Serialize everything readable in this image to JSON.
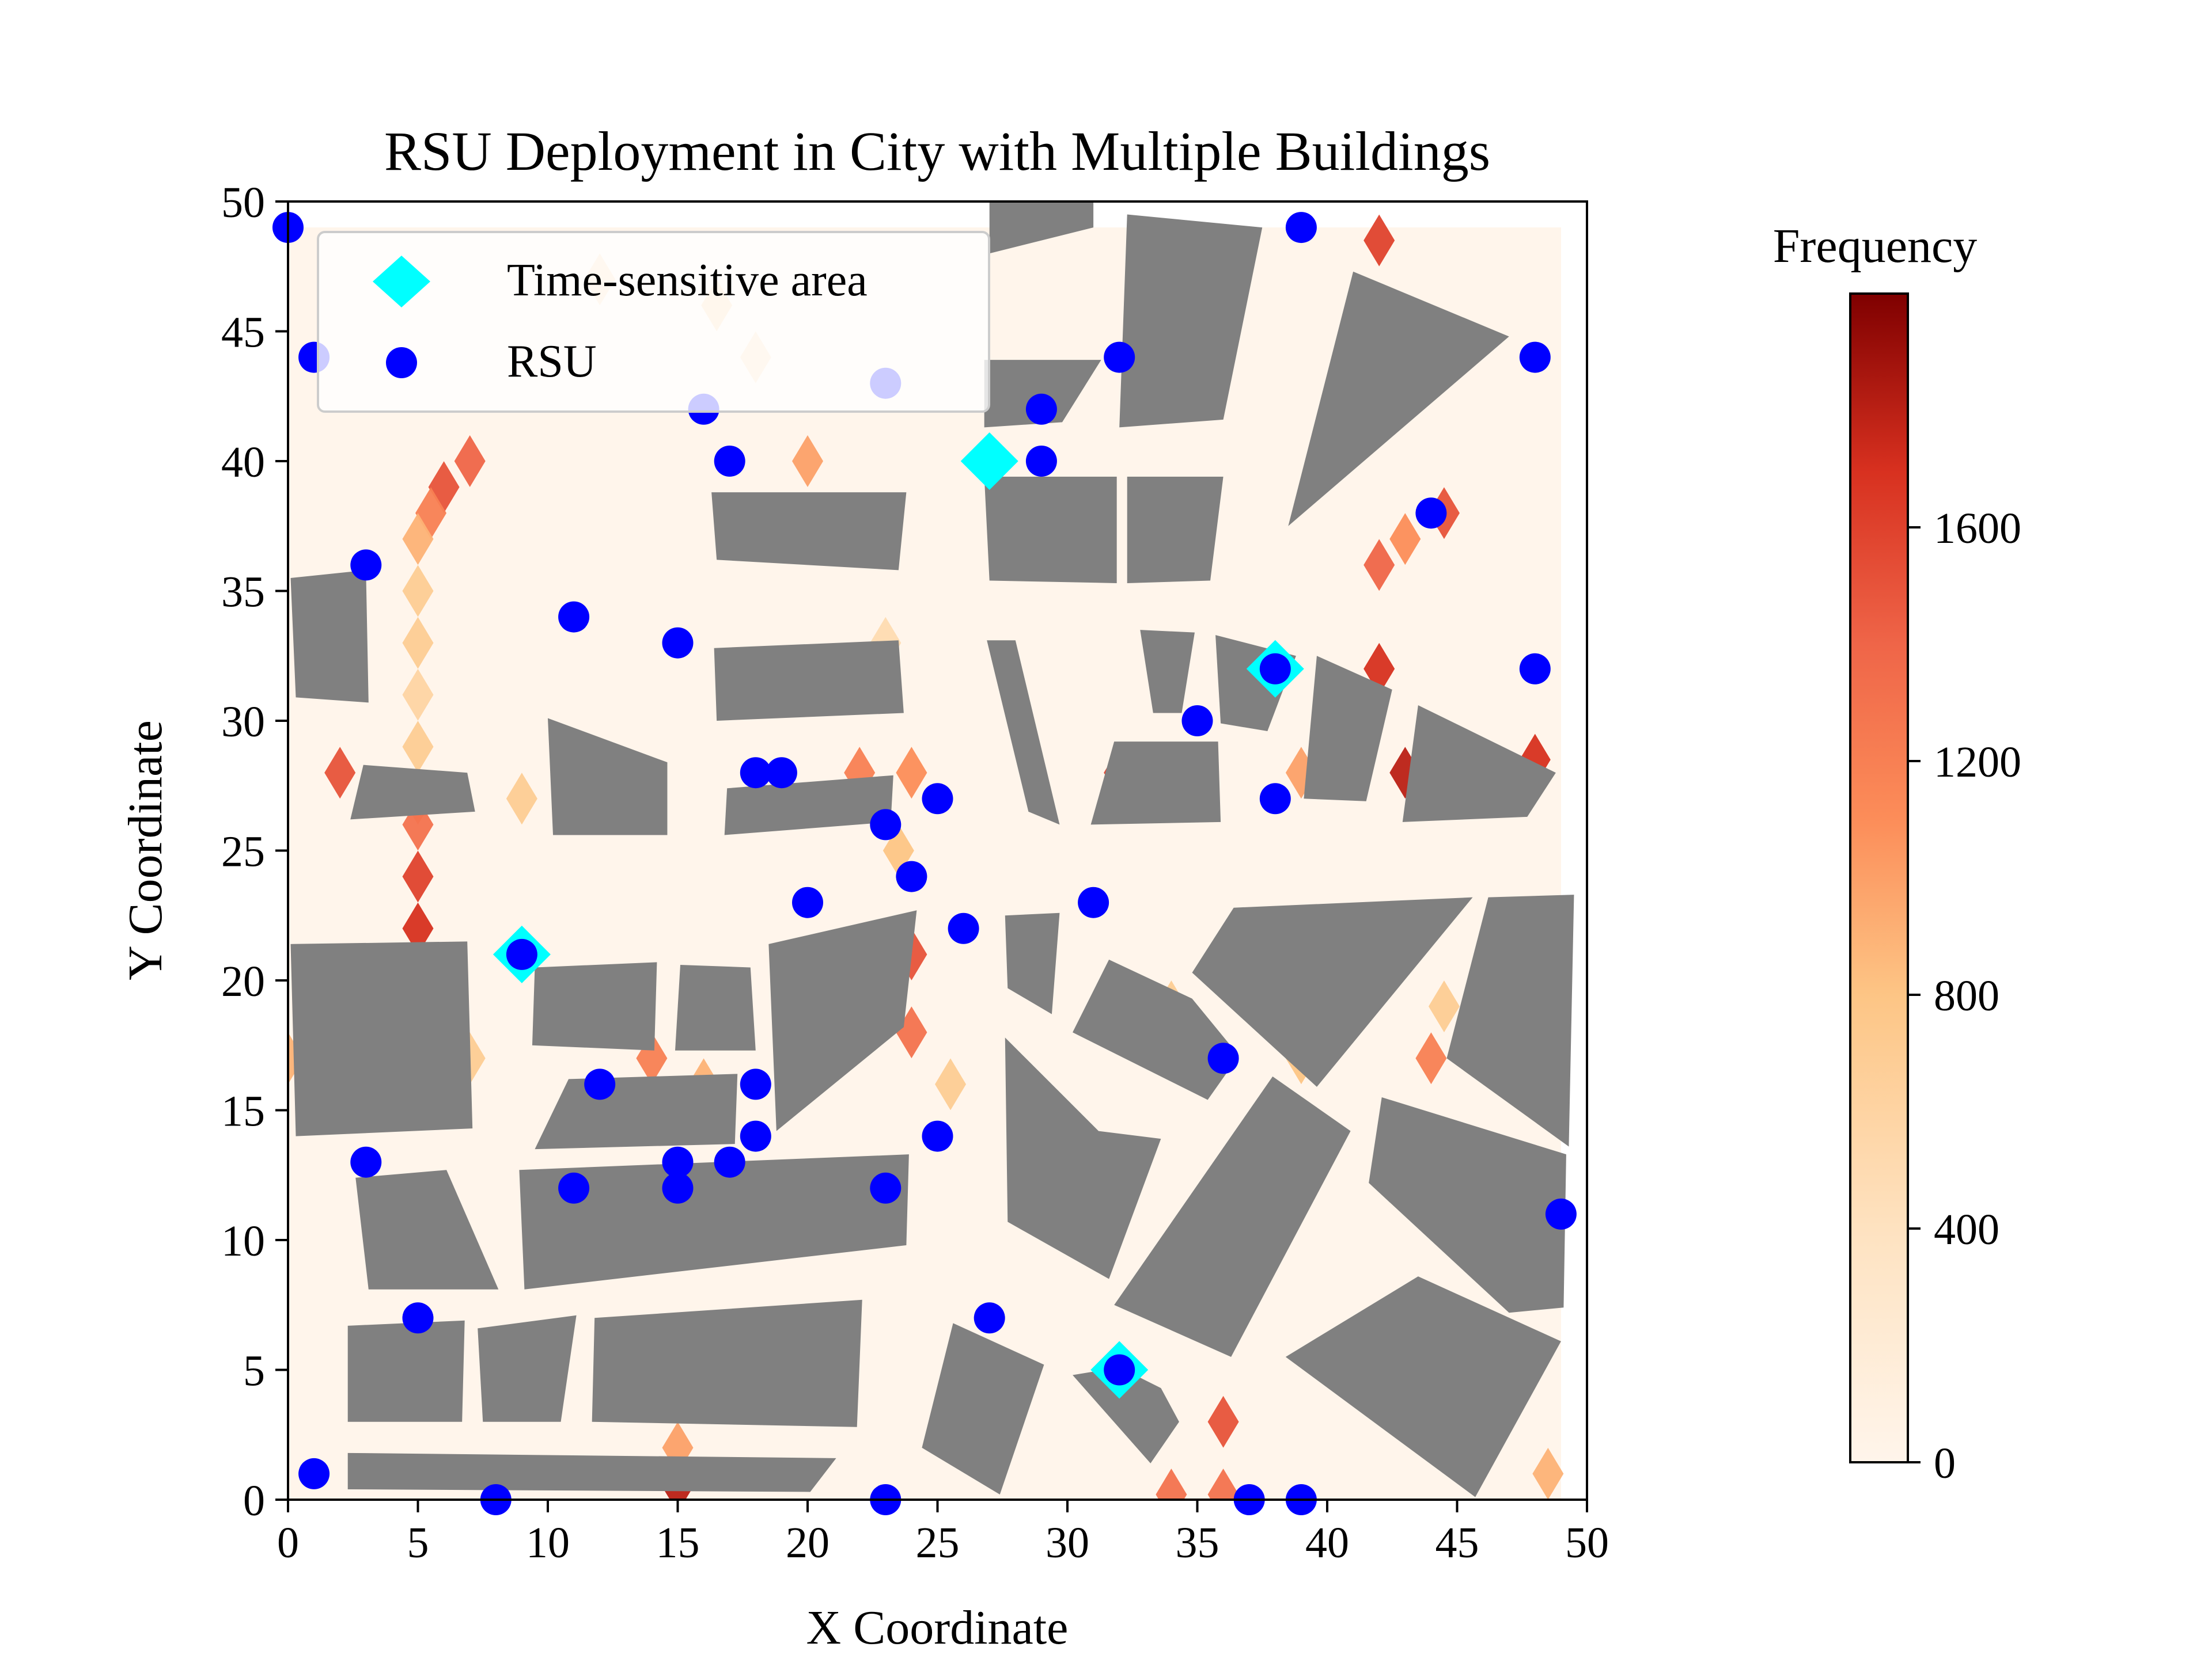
{
  "chart_data": {
    "type": "scatter",
    "title": "RSU Deployment in City with Multiple Buildings",
    "xlabel": "X Coordinate",
    "ylabel": "Y Coordinate",
    "xlim": [
      0,
      50
    ],
    "ylim": [
      0,
      50
    ],
    "xticks": [
      "0",
      "5",
      "10",
      "15",
      "20",
      "25",
      "30",
      "35",
      "40",
      "45",
      "50"
    ],
    "yticks": [
      "0",
      "5",
      "10",
      "15",
      "20",
      "25",
      "30",
      "35",
      "40",
      "45",
      "50"
    ],
    "legend": {
      "position": "top-left",
      "entries": [
        "Time-sensitive area",
        "RSU"
      ]
    },
    "colors": {
      "building": "#808080",
      "time_sensitive": "#00ffff",
      "rsu": "#0000ff",
      "heat_low": "#fff5eb",
      "heat_high": "#7f0000"
    },
    "colorbar": {
      "title": "Frequency",
      "range": [
        0,
        2000
      ],
      "ticks": [
        "0",
        "400",
        "800",
        "1200",
        "1600"
      ],
      "colormap": "OrRd"
    },
    "series": [
      {
        "name": "Time-sensitive area",
        "marker": "diamond",
        "points": [
          [
            27,
            40
          ],
          [
            38,
            32
          ],
          [
            9,
            21
          ],
          [
            32,
            5
          ]
        ]
      },
      {
        "name": "RSU",
        "marker": "circle",
        "points": [
          [
            0,
            49
          ],
          [
            39,
            49
          ],
          [
            1,
            44
          ],
          [
            32,
            44
          ],
          [
            48,
            44
          ],
          [
            23,
            43
          ],
          [
            16,
            42
          ],
          [
            29,
            42
          ],
          [
            17,
            40
          ],
          [
            29,
            40
          ],
          [
            44,
            38
          ],
          [
            3,
            36
          ],
          [
            11,
            34
          ],
          [
            15,
            33
          ],
          [
            38,
            32
          ],
          [
            48,
            32
          ],
          [
            35,
            30
          ],
          [
            18,
            28
          ],
          [
            19,
            28
          ],
          [
            25,
            27
          ],
          [
            38,
            27
          ],
          [
            23,
            26
          ],
          [
            24,
            24
          ],
          [
            20,
            23
          ],
          [
            31,
            23
          ],
          [
            26,
            22
          ],
          [
            9,
            21
          ],
          [
            36,
            17
          ],
          [
            12,
            16
          ],
          [
            18,
            16
          ],
          [
            18,
            14
          ],
          [
            25,
            14
          ],
          [
            3,
            13
          ],
          [
            15,
            13
          ],
          [
            17,
            13
          ],
          [
            11,
            12
          ],
          [
            15,
            12
          ],
          [
            23,
            12
          ],
          [
            49,
            11
          ],
          [
            5,
            7
          ],
          [
            27,
            7
          ],
          [
            32,
            5
          ],
          [
            1,
            1
          ],
          [
            8,
            0
          ],
          [
            23,
            0
          ],
          [
            37,
            0
          ],
          [
            39,
            0
          ]
        ]
      }
    ],
    "heatmap_hotspots": [
      [
        7,
        40,
        1400
      ],
      [
        6,
        39,
        1500
      ],
      [
        5.5,
        38,
        1200
      ],
      [
        5,
        37,
        900
      ],
      [
        5,
        35,
        700
      ],
      [
        5,
        33,
        700
      ],
      [
        5,
        31,
        600
      ],
      [
        5,
        29,
        700
      ],
      [
        5,
        27,
        1100
      ],
      [
        5,
        26,
        1300
      ],
      [
        5,
        24,
        1600
      ],
      [
        5,
        22,
        1700
      ],
      [
        2,
        28,
        1500
      ],
      [
        9,
        27,
        700
      ],
      [
        0,
        17,
        900
      ],
      [
        7,
        17,
        700
      ],
      [
        14,
        17,
        1200
      ],
      [
        16,
        16,
        900
      ],
      [
        15,
        2,
        1000
      ],
      [
        15,
        0.5,
        1800
      ],
      [
        20,
        40,
        1000
      ],
      [
        22,
        28,
        1200
      ],
      [
        24,
        28,
        1100
      ],
      [
        23,
        33,
        500
      ],
      [
        23.5,
        25,
        800
      ],
      [
        24,
        21,
        1500
      ],
      [
        24,
        18,
        1300
      ],
      [
        25.5,
        16,
        700
      ],
      [
        42,
        48.5,
        1600
      ],
      [
        43,
        37,
        1100
      ],
      [
        42,
        36,
        1400
      ],
      [
        44.5,
        38,
        1500
      ],
      [
        42,
        32,
        1700
      ],
      [
        43,
        28,
        1800
      ],
      [
        48,
        28.5,
        1700
      ],
      [
        32,
        28,
        1600
      ],
      [
        39,
        28,
        1000
      ],
      [
        34,
        19,
        700
      ],
      [
        39,
        17,
        800
      ],
      [
        44,
        17,
        1200
      ],
      [
        36,
        3,
        1500
      ],
      [
        34,
        0.2,
        1300
      ],
      [
        36,
        0.2,
        1300
      ],
      [
        48.5,
        1,
        900
      ],
      [
        44.5,
        19,
        700
      ],
      [
        12,
        47,
        500
      ],
      [
        16.5,
        46,
        600
      ],
      [
        18,
        44,
        500
      ]
    ],
    "buildings": [
      [
        [
          27,
          48
        ],
        [
          31,
          49
        ],
        [
          31,
          50
        ],
        [
          27,
          50
        ]
      ],
      [
        [
          32.3,
          49.5
        ],
        [
          37.5,
          49
        ],
        [
          36,
          41.6
        ],
        [
          32,
          41.3
        ]
      ],
      [
        [
          41,
          47.3
        ],
        [
          47,
          44.8
        ],
        [
          38.5,
          37.5
        ]
      ],
      [
        [
          26.8,
          43.9
        ],
        [
          31.3,
          43.9
        ],
        [
          29.8,
          41.5
        ],
        [
          26.8,
          41.3
        ]
      ],
      [
        [
          16.3,
          38.8
        ],
        [
          23.8,
          38.8
        ],
        [
          23.5,
          35.8
        ],
        [
          16.5,
          36.2
        ]
      ],
      [
        [
          26.8,
          39.4
        ],
        [
          31.9,
          39.4
        ],
        [
          31.9,
          35.3
        ],
        [
          27,
          35.4
        ]
      ],
      [
        [
          32.3,
          39.4
        ],
        [
          36,
          39.4
        ],
        [
          35.5,
          35.4
        ],
        [
          32.3,
          35.3
        ]
      ],
      [
        [
          0.1,
          35.5
        ],
        [
          3,
          35.8
        ],
        [
          3.1,
          30.7
        ],
        [
          0.3,
          30.9
        ]
      ],
      [
        [
          16.4,
          32.8
        ],
        [
          23.5,
          33.1
        ],
        [
          23.7,
          30.3
        ],
        [
          16.5,
          30
        ]
      ],
      [
        [
          26.9,
          33.1
        ],
        [
          28,
          33.1
        ],
        [
          29.7,
          26
        ],
        [
          28.5,
          26.5
        ]
      ],
      [
        [
          32.8,
          33.5
        ],
        [
          34.9,
          33.4
        ],
        [
          34.4,
          30.3
        ],
        [
          33.3,
          30.3
        ]
      ],
      [
        [
          35.7,
          33.3
        ],
        [
          38.8,
          32.5
        ],
        [
          37.7,
          29.6
        ],
        [
          35.9,
          29.9
        ]
      ],
      [
        [
          39.6,
          32.5
        ],
        [
          42.5,
          31.2
        ],
        [
          41.5,
          26.9
        ],
        [
          39.1,
          27
        ]
      ],
      [
        [
          43.5,
          30.6
        ],
        [
          48.8,
          28
        ],
        [
          47.7,
          26.3
        ],
        [
          42.9,
          26.1
        ]
      ],
      [
        [
          10,
          30.1
        ],
        [
          14.6,
          28.4
        ],
        [
          14.6,
          25.6
        ],
        [
          10.2,
          25.6
        ]
      ],
      [
        [
          16.9,
          27.4
        ],
        [
          23.3,
          27.9
        ],
        [
          23.2,
          26.1
        ],
        [
          16.8,
          25.6
        ]
      ],
      [
        [
          31.8,
          29.2
        ],
        [
          35.8,
          29.2
        ],
        [
          35.9,
          26.1
        ],
        [
          30.9,
          26
        ]
      ],
      [
        [
          2.9,
          28.3
        ],
        [
          6.9,
          28
        ],
        [
          7.2,
          26.5
        ],
        [
          2.4,
          26.2
        ]
      ],
      [
        [
          0.1,
          21.4
        ],
        [
          6.9,
          21.5
        ],
        [
          7.1,
          14.3
        ],
        [
          0.3,
          14
        ]
      ],
      [
        [
          9.5,
          20.5
        ],
        [
          14.2,
          20.7
        ],
        [
          14.1,
          17.3
        ],
        [
          9.4,
          17.5
        ]
      ],
      [
        [
          15.1,
          20.6
        ],
        [
          17.8,
          20.5
        ],
        [
          18,
          17.3
        ],
        [
          14.9,
          17.3
        ]
      ],
      [
        [
          18.5,
          21.4
        ],
        [
          24.2,
          22.7
        ],
        [
          23.7,
          18.2
        ],
        [
          18.8,
          14.2
        ]
      ],
      [
        [
          27.6,
          22.5
        ],
        [
          29.7,
          22.6
        ],
        [
          29.4,
          18.7
        ],
        [
          27.7,
          19.7
        ]
      ],
      [
        [
          31.6,
          20.8
        ],
        [
          34.8,
          19.3
        ],
        [
          36.6,
          17.1
        ],
        [
          35.4,
          15.4
        ],
        [
          30.2,
          18
        ]
      ],
      [
        [
          36.4,
          22.8
        ],
        [
          45.6,
          23.2
        ],
        [
          39.6,
          15.9
        ],
        [
          34.8,
          20.3
        ]
      ],
      [
        [
          46.2,
          23.2
        ],
        [
          49.5,
          23.3
        ],
        [
          49.3,
          13.6
        ],
        [
          44.6,
          17
        ]
      ],
      [
        [
          10.8,
          16.2
        ],
        [
          17.3,
          16.4
        ],
        [
          17.2,
          13.7
        ],
        [
          9.5,
          13.5
        ]
      ],
      [
        [
          27.6,
          17.8
        ],
        [
          31.2,
          14.2
        ],
        [
          33.6,
          13.9
        ],
        [
          31.6,
          8.5
        ],
        [
          27.7,
          10.7
        ]
      ],
      [
        [
          37.9,
          16.3
        ],
        [
          40.9,
          14.2
        ],
        [
          36.3,
          5.5
        ],
        [
          31.8,
          7.5
        ]
      ],
      [
        [
          42.1,
          15.5
        ],
        [
          49.2,
          13.3
        ],
        [
          49.1,
          7.4
        ],
        [
          47,
          7.2
        ],
        [
          41.6,
          12.2
        ]
      ],
      [
        [
          2.6,
          12.4
        ],
        [
          6.1,
          12.7
        ],
        [
          8.1,
          8.1
        ],
        [
          3.1,
          8.1
        ]
      ],
      [
        [
          8.9,
          12.7
        ],
        [
          23.9,
          13.3
        ],
        [
          23.8,
          9.8
        ],
        [
          9.1,
          8.1
        ]
      ],
      [
        [
          43.5,
          8.6
        ],
        [
          49,
          6.1
        ],
        [
          45.7,
          0.1
        ],
        [
          38.4,
          5.5
        ]
      ],
      [
        [
          2.3,
          6.7
        ],
        [
          6.8,
          6.9
        ],
        [
          6.7,
          3
        ],
        [
          2.3,
          3
        ]
      ],
      [
        [
          7.3,
          6.6
        ],
        [
          11.1,
          7.1
        ],
        [
          10.5,
          3
        ],
        [
          7.5,
          3
        ]
      ],
      [
        [
          11.8,
          7
        ],
        [
          22.1,
          7.7
        ],
        [
          21.9,
          2.8
        ],
        [
          11.7,
          3
        ]
      ],
      [
        [
          25.6,
          6.8
        ],
        [
          29.1,
          5.2
        ],
        [
          27.4,
          0.2
        ],
        [
          24.4,
          2
        ]
      ],
      [
        [
          32,
          5.1
        ],
        [
          33.6,
          4.3
        ],
        [
          34.3,
          3
        ],
        [
          33.2,
          1.4
        ],
        [
          30.2,
          4.8
        ]
      ],
      [
        [
          2.3,
          1.8
        ],
        [
          21.1,
          1.6
        ],
        [
          20.1,
          0.3
        ],
        [
          2.3,
          0.4
        ]
      ]
    ]
  }
}
